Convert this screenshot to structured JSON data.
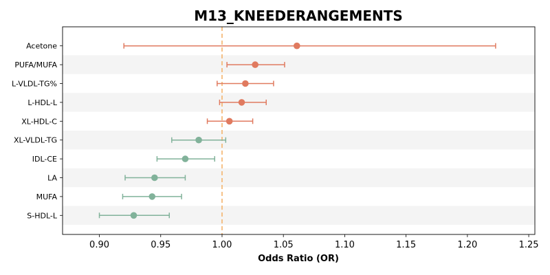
{
  "chart_data": {
    "type": "forest",
    "title": "M13_KNEEDERANGEMENTS",
    "xlabel": "Odds Ratio (OR)",
    "ylabel": "",
    "xlim": [
      0.87,
      1.255
    ],
    "x_ticks": [
      0.9,
      0.95,
      1.0,
      1.05,
      1.1,
      1.15,
      1.2,
      1.25
    ],
    "x_tick_labels": [
      "0.90",
      "0.95",
      "1.00",
      "1.05",
      "1.10",
      "1.15",
      "1.20",
      "1.25"
    ],
    "reference_line": 1.0,
    "grid": false,
    "alternating_row_shading": true,
    "colors": {
      "positive": "#E07A5F",
      "negative": "#81B29A",
      "reference_line": "#F4B36B",
      "row_shade": "#F4F4F4"
    },
    "rows": [
      {
        "label": "Acetone",
        "or": 1.061,
        "ci_low": 0.92,
        "ci_high": 1.223
      },
      {
        "label": "PUFA/MUFA",
        "or": 1.027,
        "ci_low": 1.004,
        "ci_high": 1.051
      },
      {
        "label": "L-VLDL-TG%",
        "or": 1.019,
        "ci_low": 0.996,
        "ci_high": 1.042
      },
      {
        "label": "L-HDL-L",
        "or": 1.016,
        "ci_low": 0.998,
        "ci_high": 1.036
      },
      {
        "label": "XL-HDL-C",
        "or": 1.006,
        "ci_low": 0.988,
        "ci_high": 1.025
      },
      {
        "label": "XL-VLDL-TG",
        "or": 0.981,
        "ci_low": 0.959,
        "ci_high": 1.003
      },
      {
        "label": "IDL-CE",
        "or": 0.97,
        "ci_low": 0.947,
        "ci_high": 0.994
      },
      {
        "label": "LA",
        "or": 0.945,
        "ci_low": 0.921,
        "ci_high": 0.97
      },
      {
        "label": "MUFA",
        "or": 0.943,
        "ci_low": 0.919,
        "ci_high": 0.967
      },
      {
        "label": "S-HDL-L",
        "or": 0.928,
        "ci_low": 0.9,
        "ci_high": 0.957
      }
    ]
  }
}
